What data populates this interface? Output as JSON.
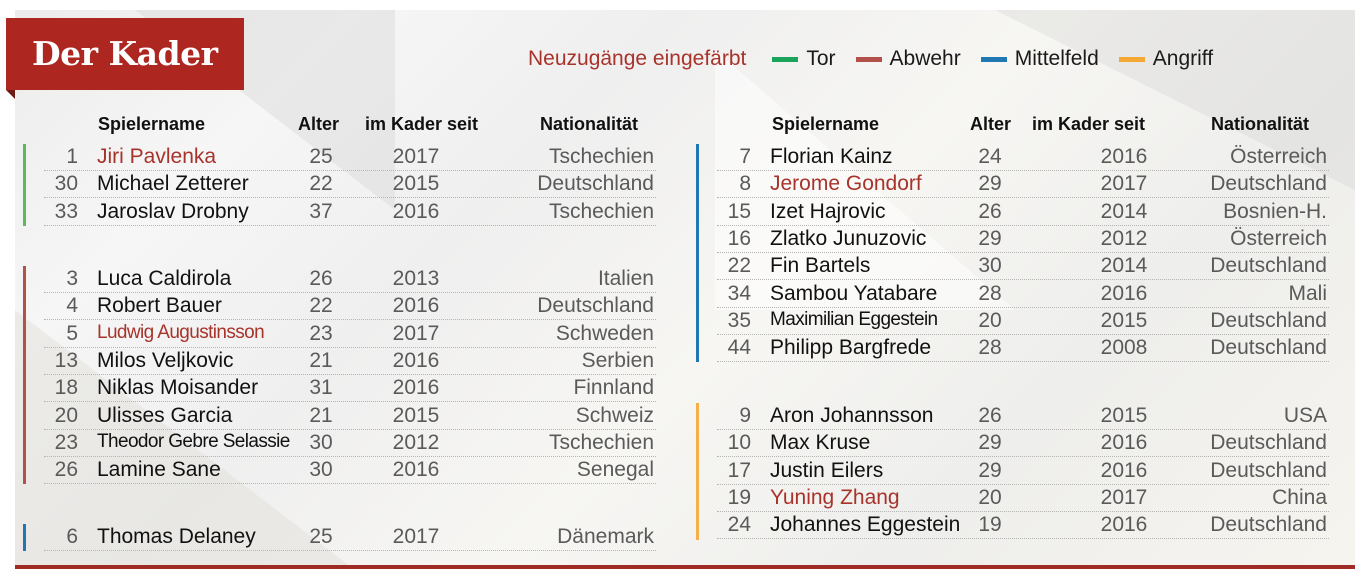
{
  "title": "Der Kader",
  "legend": {
    "note": "Neuzugänge eingefärbt",
    "items": [
      {
        "label": "Tor",
        "color": "#1aa35a"
      },
      {
        "label": "Abwehr",
        "color": "#b2504a"
      },
      {
        "label": "Mittelfeld",
        "color": "#1f78b4"
      },
      {
        "label": "Angriff",
        "color": "#f5a833"
      }
    ]
  },
  "colors": {
    "new_player": "#a8332b",
    "banner": "#ae2620",
    "tor": "#5cb85c",
    "abwehr": "#b2504a",
    "mittelfeld": "#1f78b4",
    "angriff": "#f5b04a"
  },
  "columns": {
    "name": "Spielername",
    "age": "Alter",
    "since": "im Kader seit",
    "nationality": "Nationalität"
  },
  "left": {
    "groups": [
      {
        "position": "Tor",
        "players": [
          {
            "number": "1",
            "name": "Jiri Pavlenka",
            "age": "25",
            "since": "2017",
            "nationality": "Tschechien",
            "new": true
          },
          {
            "number": "30",
            "name": "Michael Zetterer",
            "age": "22",
            "since": "2015",
            "nationality": "Deutschland",
            "new": false
          },
          {
            "number": "33",
            "name": "Jaroslav Drobny",
            "age": "37",
            "since": "2016",
            "nationality": "Tschechien",
            "new": false
          }
        ]
      },
      {
        "position": "Abwehr",
        "players": [
          {
            "number": "3",
            "name": "Luca Caldirola",
            "age": "26",
            "since": "2013",
            "nationality": "Italien",
            "new": false
          },
          {
            "number": "4",
            "name": "Robert Bauer",
            "age": "22",
            "since": "2016",
            "nationality": "Deutschland",
            "new": false
          },
          {
            "number": "5",
            "name": "Ludwig Augustinsson",
            "age": "23",
            "since": "2017",
            "nationality": "Schweden",
            "new": true
          },
          {
            "number": "13",
            "name": "Milos Veljkovic",
            "age": "21",
            "since": "2016",
            "nationality": "Serbien",
            "new": false
          },
          {
            "number": "18",
            "name": "Niklas Moisander",
            "age": "31",
            "since": "2016",
            "nationality": "Finnland",
            "new": false
          },
          {
            "number": "20",
            "name": "Ulisses Garcia",
            "age": "21",
            "since": "2015",
            "nationality": "Schweiz",
            "new": false
          },
          {
            "number": "23",
            "name": "Theodor Gebre Selassie",
            "age": "30",
            "since": "2012",
            "nationality": "Tschechien",
            "new": false
          },
          {
            "number": "26",
            "name": "Lamine Sane",
            "age": "30",
            "since": "2016",
            "nationality": "Senegal",
            "new": false
          }
        ]
      },
      {
        "position": "Mittelfeld",
        "players": [
          {
            "number": "6",
            "name": "Thomas Delaney",
            "age": "25",
            "since": "2017",
            "nationality": "Dänemark",
            "new": false
          }
        ]
      }
    ]
  },
  "right": {
    "groups": [
      {
        "position": "Mittelfeld",
        "players": [
          {
            "number": "7",
            "name": "Florian Kainz",
            "age": "24",
            "since": "2016",
            "nationality": "Österreich",
            "new": false
          },
          {
            "number": "8",
            "name": "Jerome Gondorf",
            "age": "29",
            "since": "2017",
            "nationality": "Deutschland",
            "new": true
          },
          {
            "number": "15",
            "name": "Izet Hajrovic",
            "age": "26",
            "since": "2014",
            "nationality": "Bosnien-H.",
            "new": false
          },
          {
            "number": "16",
            "name": "Zlatko Junuzovic",
            "age": "29",
            "since": "2012",
            "nationality": "Österreich",
            "new": false
          },
          {
            "number": "22",
            "name": "Fin Bartels",
            "age": "30",
            "since": "2014",
            "nationality": "Deutschland",
            "new": false
          },
          {
            "number": "34",
            "name": "Sambou Yatabare",
            "age": "28",
            "since": "2016",
            "nationality": "Mali",
            "new": false
          },
          {
            "number": "35",
            "name": "Maximilian Eggestein",
            "age": "20",
            "since": "2015",
            "nationality": "Deutschland",
            "new": false
          },
          {
            "number": "44",
            "name": "Philipp Bargfrede",
            "age": "28",
            "since": "2008",
            "nationality": "Deutschland",
            "new": false
          }
        ]
      },
      {
        "position": "Angriff",
        "players": [
          {
            "number": "9",
            "name": "Aron Johannsson",
            "age": "26",
            "since": "2015",
            "nationality": "USA",
            "new": false
          },
          {
            "number": "10",
            "name": "Max Kruse",
            "age": "29",
            "since": "2016",
            "nationality": "Deutschland",
            "new": false
          },
          {
            "number": "17",
            "name": "Justin Eilers",
            "age": "29",
            "since": "2016",
            "nationality": "Deutschland",
            "new": false
          },
          {
            "number": "19",
            "name": "Yuning Zhang",
            "age": "20",
            "since": "2017",
            "nationality": "China",
            "new": true
          },
          {
            "number": "24",
            "name": "Johannes Eggestein",
            "age": "19",
            "since": "2016",
            "nationality": "Deutschland",
            "new": false
          }
        ]
      }
    ]
  }
}
